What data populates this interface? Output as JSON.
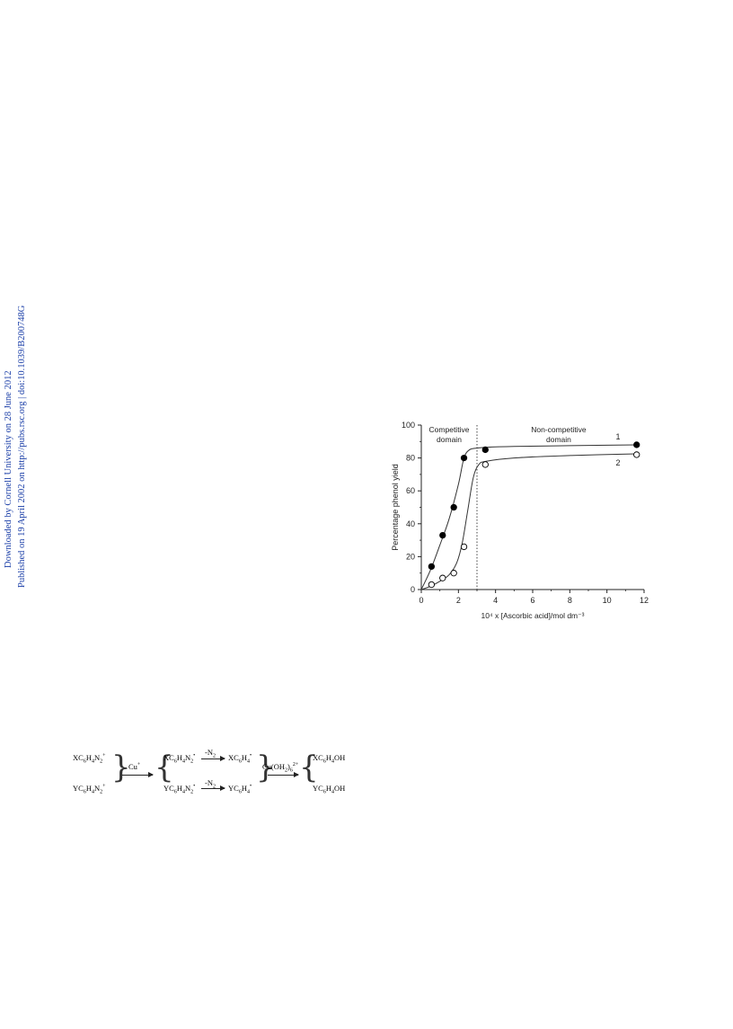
{
  "side_note": {
    "line1": "Downloaded by Cornell University on 28 June 2012",
    "line2": "Published on 19 April 2002 on http://pubs.rsc.org | doi:10.1039/B200748G"
  },
  "chart_data": {
    "type": "scatter",
    "xlabel": "10⁴ x [Ascorbic acid]/mol dm⁻³",
    "ylabel": "Percentage phenol yield",
    "xlim": [
      0,
      12
    ],
    "ylim": [
      0,
      100
    ],
    "xticks": [
      0,
      2,
      4,
      6,
      8,
      10,
      12
    ],
    "yticks": [
      0,
      20,
      40,
      60,
      80,
      100
    ],
    "grid": false,
    "divider_x": 3.0,
    "annotations": [
      {
        "line1": "Competitive",
        "line2": "domain"
      },
      {
        "line1": "Non-competitive",
        "line2": "domain"
      }
    ],
    "series": [
      {
        "name": "1",
        "marker": "filled-circle",
        "x": [
          0.55,
          1.15,
          1.75,
          2.3,
          3.45,
          11.6
        ],
        "y": [
          14,
          33,
          50,
          80,
          85,
          88
        ],
        "curve_x": [
          0,
          0.5,
          1.0,
          1.5,
          2.0,
          2.3,
          2.6,
          3.0,
          3.5,
          5,
          8,
          11.6
        ],
        "curve_y": [
          0,
          12,
          27,
          43,
          64,
          80,
          85,
          86,
          86.5,
          87,
          87.5,
          88
        ]
      },
      {
        "name": "2",
        "marker": "open-circle",
        "x": [
          0.55,
          1.15,
          1.75,
          2.3,
          3.45,
          11.6
        ],
        "y": [
          3,
          7,
          10,
          26,
          76,
          82
        ],
        "curve_x": [
          0,
          0.5,
          1.0,
          1.5,
          1.9,
          2.2,
          2.5,
          2.8,
          3.1,
          3.5,
          5,
          8,
          11.6
        ],
        "curve_y": [
          0,
          2,
          5,
          9,
          16,
          28,
          48,
          68,
          76,
          78,
          80,
          81.5,
          82.5
        ]
      }
    ]
  }
}
